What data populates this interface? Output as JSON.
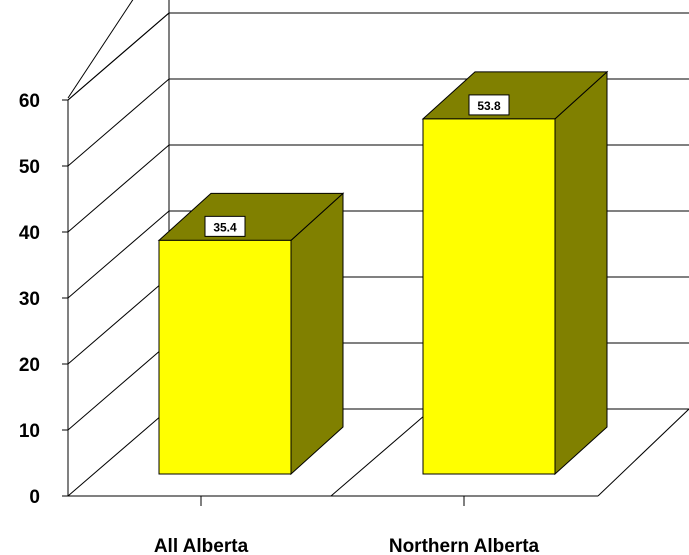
{
  "chart_data": {
    "type": "bar",
    "three_d": true,
    "categories": [
      "All Alberta",
      "Northern Alberta"
    ],
    "values": [
      35.4,
      53.8
    ],
    "data_labels": [
      "35.4",
      "53.8"
    ],
    "title": "",
    "xlabel": "",
    "ylabel": "",
    "ylim": [
      0,
      60
    ],
    "yticks": [
      "0",
      "10",
      "20",
      "30",
      "40",
      "50",
      "60"
    ],
    "grid": true,
    "legend": "none",
    "colors": {
      "bar_front": "#ffff00",
      "bar_side": "#808000",
      "bar_top": "#808000",
      "grid": "#000000",
      "label_box": "#ffffff"
    }
  }
}
